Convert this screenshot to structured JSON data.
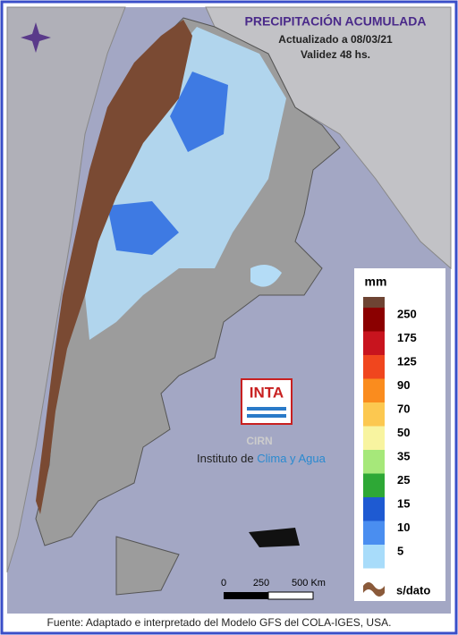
{
  "header": {
    "title": "PRECIPITACIÓN ACUMULADA",
    "updated": "Actualizado a 08/03/21",
    "validity": "Validez 48 hs."
  },
  "legend": {
    "unit": "mm",
    "top_color": "#6e4433",
    "items": [
      {
        "value": 250,
        "color": "#8b0000"
      },
      {
        "value": 175,
        "color": "#c8141e"
      },
      {
        "value": 125,
        "color": "#f0461e"
      },
      {
        "value": 90,
        "color": "#fa8c1e"
      },
      {
        "value": 70,
        "color": "#fcc850"
      },
      {
        "value": 50,
        "color": "#f8f4a0"
      },
      {
        "value": 35,
        "color": "#a6e87a"
      },
      {
        "value": 25,
        "color": "#2ea836"
      },
      {
        "value": 15,
        "color": "#1e5ad2"
      },
      {
        "value": 10,
        "color": "#4a8ef0"
      },
      {
        "value": 5,
        "color": "#a8dcfa"
      }
    ],
    "nodata": "s/dato"
  },
  "logo": {
    "mark": "INTA",
    "unit": "CIRN",
    "name_a": "Instituto de ",
    "name_b": "Clima y Agua"
  },
  "scale": {
    "labels": [
      "0",
      "250",
      "500 Km"
    ]
  },
  "footer": {
    "source": "Fuente: Adaptado e interpretado del Modelo GFS del COLA-IGES, USA."
  }
}
